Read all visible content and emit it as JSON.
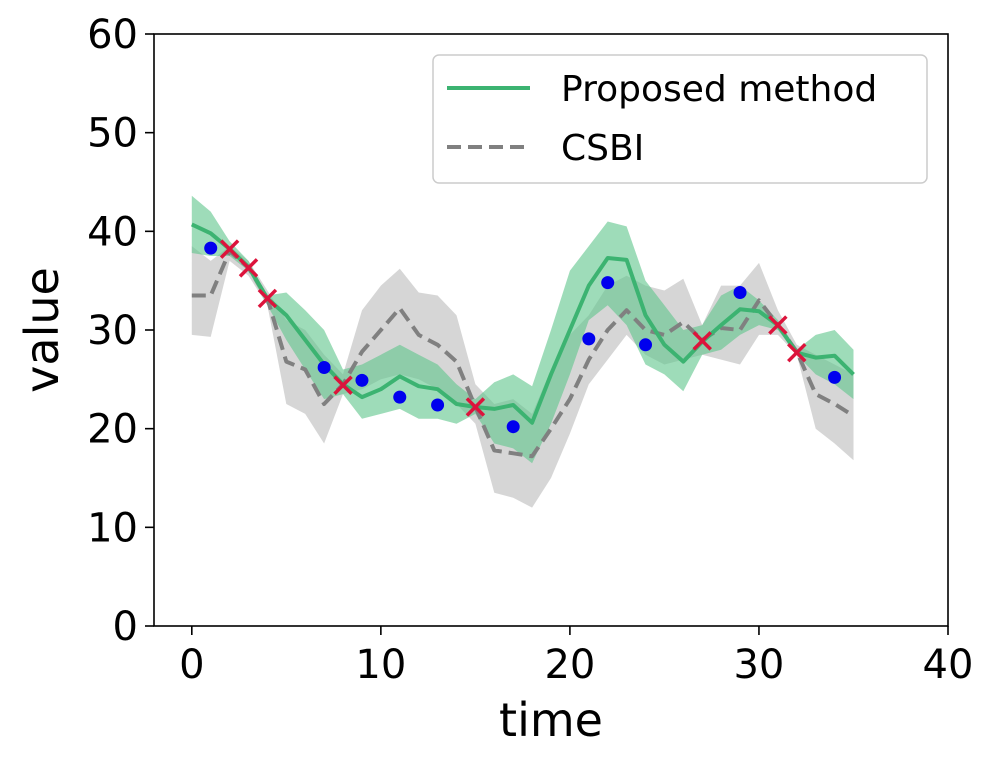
{
  "chart_data": {
    "type": "line",
    "xlabel": "time",
    "ylabel": "value",
    "xlim": [
      -2,
      40
    ],
    "ylim": [
      0,
      60
    ],
    "xticks": [
      0,
      10,
      20,
      30,
      40
    ],
    "yticks": [
      0,
      10,
      20,
      30,
      40,
      50,
      60
    ],
    "legend_position": "top-right",
    "colors": {
      "proposed": "#3cb371",
      "proposed_band": "#5ec48a",
      "csbi": "#808080",
      "csbi_band": "#c8c8c8",
      "observed": "#0000ee",
      "target": "#dc143c"
    },
    "series": [
      {
        "name": "Proposed method",
        "style": "solid",
        "x": [
          0,
          1,
          2,
          3,
          4,
          5,
          6,
          7,
          8,
          9,
          10,
          11,
          12,
          13,
          14,
          15,
          16,
          17,
          18,
          19,
          20,
          21,
          22,
          23,
          24,
          25,
          26,
          27,
          28,
          29,
          30,
          31,
          32,
          33,
          34,
          35
        ],
        "y": [
          40.7,
          39.8,
          38.2,
          36.4,
          33.2,
          31.5,
          29.0,
          26.5,
          24.5,
          23.2,
          24.0,
          25.3,
          24.3,
          24.0,
          22.5,
          22.2,
          22.0,
          22.4,
          20.6,
          25.5,
          30.0,
          34.5,
          37.3,
          37.1,
          31.5,
          28.5,
          26.8,
          28.8,
          30.5,
          32.1,
          31.9,
          30.5,
          27.7,
          27.2,
          27.4,
          25.5
        ],
        "lower": [
          37.8,
          37.5,
          37.5,
          36.0,
          32.5,
          29.0,
          26.0,
          23.0,
          23.5,
          21.0,
          21.5,
          22.0,
          21.0,
          21.0,
          20.5,
          21.5,
          18.5,
          18.0,
          16.5,
          20.5,
          25.5,
          31.0,
          32.5,
          30.5,
          26.5,
          25.5,
          23.8,
          27.5,
          28.0,
          29.5,
          30.5,
          30.0,
          27.5,
          25.5,
          24.5,
          23.0
        ],
        "upper": [
          43.6,
          42.0,
          39.0,
          37.0,
          33.5,
          33.8,
          32.0,
          30.0,
          26.0,
          26.5,
          27.5,
          28.5,
          27.5,
          26.5,
          24.5,
          23.0,
          24.7,
          25.5,
          24.3,
          30.0,
          36.0,
          38.5,
          41.0,
          40.5,
          35.0,
          32.5,
          30.0,
          30.5,
          33.5,
          34.5,
          33.0,
          31.0,
          28.0,
          29.5,
          30.0,
          28.0
        ]
      },
      {
        "name": "CSBI",
        "style": "dashed",
        "x": [
          0,
          1,
          2,
          3,
          4,
          5,
          6,
          7,
          8,
          9,
          10,
          11,
          12,
          13,
          14,
          15,
          16,
          17,
          18,
          19,
          20,
          21,
          22,
          23,
          24,
          25,
          26,
          27,
          28,
          29,
          30,
          31,
          32,
          33,
          34,
          35
        ],
        "y": [
          33.5,
          33.5,
          38.0,
          36.3,
          33.2,
          26.8,
          26.0,
          22.5,
          24.5,
          27.8,
          30.0,
          32.2,
          29.5,
          28.5,
          26.8,
          22.2,
          17.8,
          17.5,
          17.2,
          20.0,
          23.0,
          27.0,
          30.0,
          32.0,
          30.0,
          29.5,
          30.8,
          29.0,
          30.2,
          30.0,
          33.0,
          30.5,
          27.8,
          23.5,
          22.5,
          21.3
        ],
        "lower": [
          29.5,
          29.3,
          37.0,
          35.5,
          32.5,
          22.5,
          21.5,
          18.5,
          23.5,
          24.0,
          25.0,
          25.5,
          25.0,
          24.0,
          22.5,
          20.5,
          13.5,
          13.0,
          12.0,
          15.0,
          19.5,
          24.5,
          27.0,
          29.5,
          27.5,
          26.5,
          27.0,
          27.5,
          27.0,
          26.5,
          29.5,
          29.5,
          27.5,
          20.0,
          18.5,
          16.8
        ],
        "upper": [
          38.5,
          37.0,
          38.5,
          37.0,
          34.0,
          31.0,
          30.0,
          27.5,
          25.5,
          32.0,
          34.5,
          36.2,
          33.8,
          33.5,
          31.5,
          24.5,
          22.5,
          23.0,
          21.5,
          26.0,
          29.5,
          31.5,
          34.5,
          35.5,
          34.5,
          34.0,
          35.2,
          30.5,
          34.5,
          34.5,
          36.8,
          32.0,
          28.5,
          27.5,
          26.5,
          25.5
        ]
      }
    ],
    "observed_points": {
      "marker": "circle",
      "x": [
        1,
        7,
        9,
        11,
        13,
        17,
        21,
        22,
        24,
        29,
        34
      ],
      "y": [
        38.3,
        26.2,
        24.9,
        23.2,
        22.4,
        20.2,
        29.1,
        34.8,
        28.5,
        33.8,
        25.2
      ]
    },
    "target_points": {
      "marker": "x",
      "x": [
        2,
        3,
        4,
        8,
        15,
        27,
        31,
        32
      ],
      "y": [
        38.2,
        36.3,
        33.2,
        24.4,
        22.2,
        28.9,
        30.5,
        27.7
      ]
    }
  }
}
